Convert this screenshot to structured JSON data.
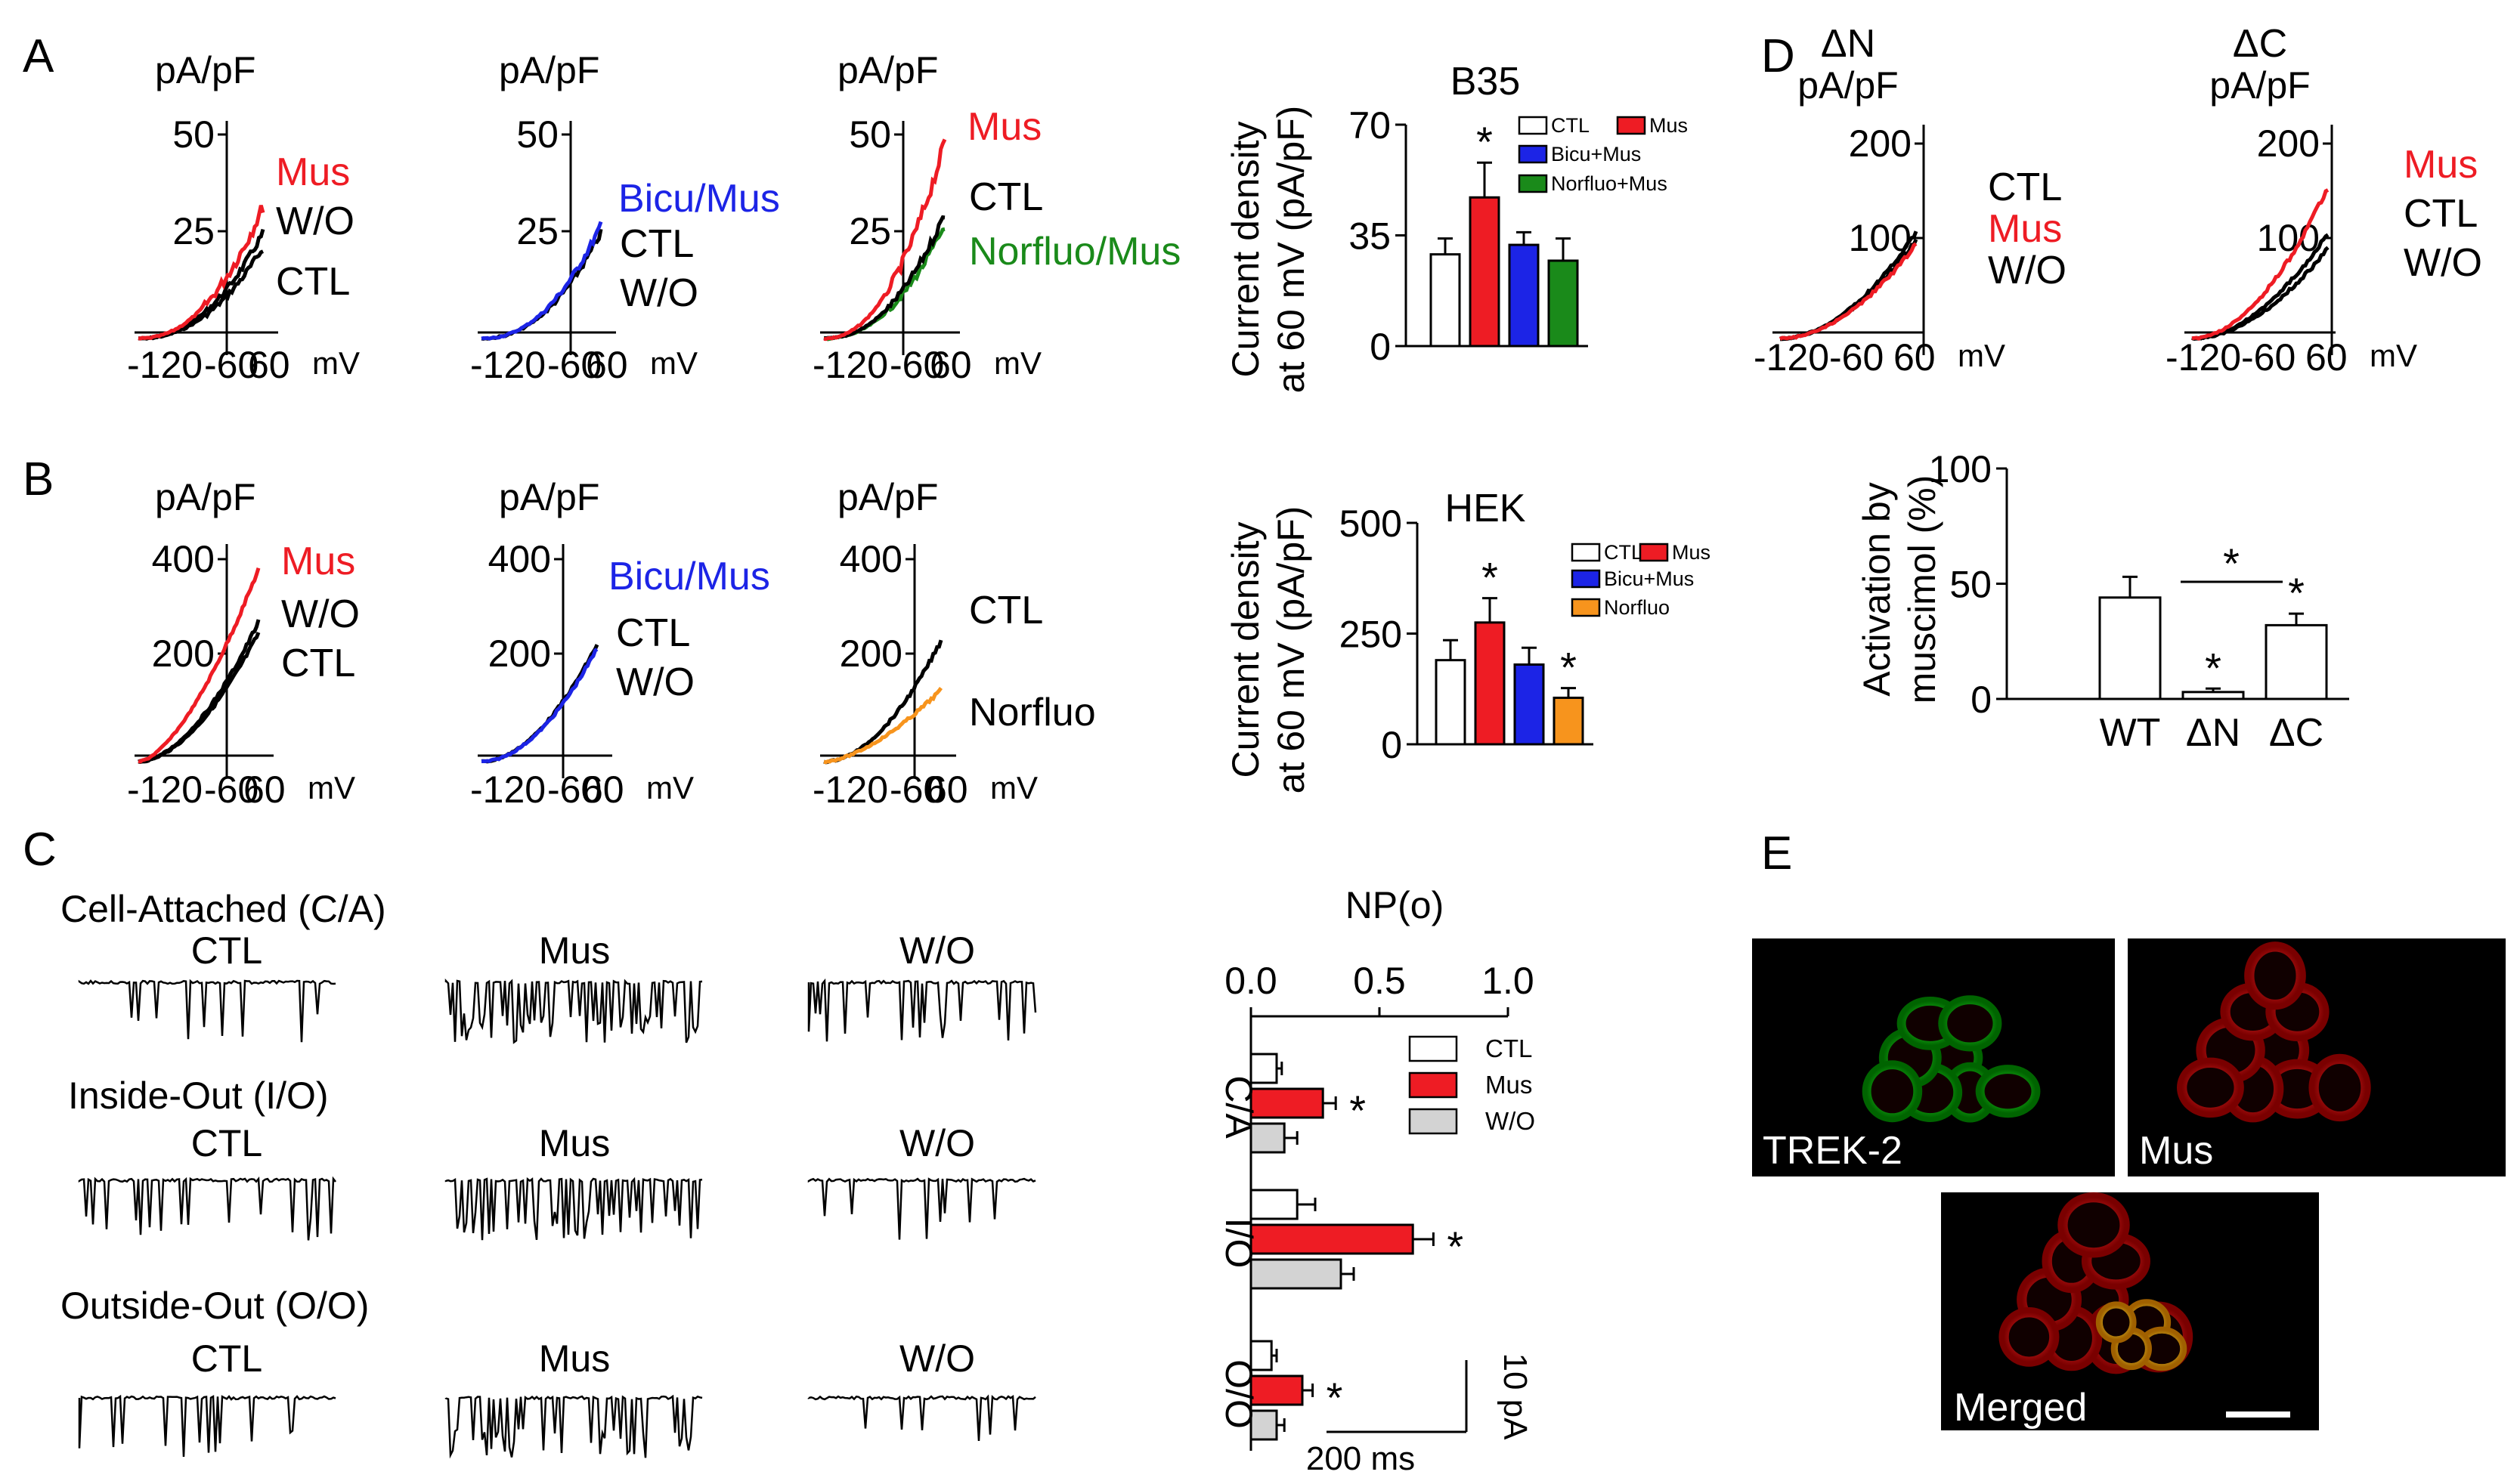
{
  "colors": {
    "ctl": "#000000",
    "mus": "#ee1c24",
    "bicu": "#1c24e6",
    "norfluo_b35": "#1a8a1a",
    "norfluo_hek": "#f7941d",
    "wo_bar": "#d3d3d3",
    "ctl_bar": "#ffffff"
  },
  "panels": {
    "A": "A",
    "B": "B",
    "C": "C",
    "D": "D",
    "E": "E"
  },
  "units": {
    "pApF": "pA/pF",
    "mV": "mV"
  },
  "x_ticks": {
    "m120": "-120",
    "m60": "-60",
    "p60": "60"
  },
  "panel_a": {
    "yticks": [
      "50",
      "25"
    ],
    "iv": [
      {
        "labels": [
          "Mus",
          "W/O",
          "CTL"
        ]
      },
      {
        "labels": [
          "Bicu/Mus",
          "CTL",
          "W/O"
        ]
      },
      {
        "labels": [
          "Mus",
          "CTL",
          "Norfluo/Mus"
        ]
      }
    ]
  },
  "panel_b": {
    "yticks": [
      "400",
      "200"
    ],
    "iv": [
      {
        "labels": [
          "Mus",
          "W/O",
          "CTL"
        ]
      },
      {
        "labels": [
          "Bicu/Mus",
          "CTL",
          "W/O"
        ]
      },
      {
        "labels": [
          "CTL",
          "Norfluo"
        ]
      }
    ]
  },
  "panel_c": {
    "rows": [
      "Cell-Attached (C/A)",
      "Inside-Out (I/O)",
      "Outside-Out (O/O)"
    ],
    "cols": [
      "CTL",
      "Mus",
      "W/O"
    ],
    "scale": {
      "y": "10 pA",
      "x": "200 ms"
    }
  },
  "panel_d": {
    "constructs": [
      {
        "name": "ΔN",
        "labels": [
          "CTL",
          "Mus",
          "W/O"
        ]
      },
      {
        "name": "ΔC",
        "labels": [
          "Mus",
          "CTL",
          "W/O"
        ]
      }
    ],
    "yticks": [
      "200",
      "100"
    ]
  },
  "panel_e": {
    "labels": [
      "TREK-2",
      "Mus",
      "Merged"
    ]
  },
  "chart_data": [
    {
      "type": "bar",
      "id": "A_bar",
      "title": "B35",
      "ylabel": [
        "Current density",
        "at 60 mV (pA/pF)"
      ],
      "ylim": [
        0,
        70
      ],
      "yticks": [
        0,
        35,
        70
      ],
      "categories": [
        "CTL",
        "Mus",
        "Bicu+Mus",
        "Norfluo+Mus"
      ],
      "values": [
        29,
        47,
        32,
        27
      ],
      "errors": [
        5,
        11,
        4,
        7
      ],
      "significant": [
        false,
        true,
        false,
        false
      ],
      "sig_mark": "*",
      "legend": [
        "CTL",
        "Mus",
        "Bicu+Mus",
        "Norfluo+Mus"
      ]
    },
    {
      "type": "bar",
      "id": "B_bar",
      "title": "HEK",
      "ylabel": [
        "Current density",
        "at 60 mV (pA/pF)"
      ],
      "ylim": [
        0,
        500
      ],
      "yticks": [
        0,
        250,
        500
      ],
      "categories": [
        "CTL",
        "Mus",
        "Bicu+Mus",
        "Norfluo"
      ],
      "values": [
        190,
        275,
        180,
        105
      ],
      "errors": [
        45,
        55,
        38,
        22
      ],
      "significant": [
        false,
        true,
        false,
        true
      ],
      "sig_mark": "*",
      "legend": [
        "CTL",
        "Mus",
        "Bicu+Mus",
        "Norfluo"
      ]
    },
    {
      "type": "bar",
      "id": "C_bar",
      "orientation": "horizontal",
      "title": "NP(o)",
      "xlim": [
        0,
        1
      ],
      "xticks": [
        "0.0",
        "0.5",
        "1.0"
      ],
      "groups": [
        "C/A",
        "I/O",
        "O/O"
      ],
      "series": [
        {
          "name": "CTL",
          "values": [
            0.1,
            0.18,
            0.08
          ],
          "errors": [
            0.02,
            0.07,
            0.02
          ]
        },
        {
          "name": "Mus",
          "values": [
            0.28,
            0.63,
            0.2
          ],
          "errors": [
            0.05,
            0.08,
            0.04
          ]
        },
        {
          "name": "W/O",
          "values": [
            0.13,
            0.35,
            0.1
          ],
          "errors": [
            0.05,
            0.05,
            0.03
          ]
        }
      ],
      "sig_mark": "*",
      "significant_series": "Mus",
      "legend": [
        "CTL",
        "Mus",
        "W/O"
      ]
    },
    {
      "type": "bar",
      "id": "D_bar",
      "ylabel": [
        "Activation by",
        "muscimol (%)"
      ],
      "ylim": [
        0,
        100
      ],
      "yticks": [
        0,
        50,
        100
      ],
      "categories": [
        "WT",
        "ΔN",
        "ΔC"
      ],
      "values": [
        44,
        3,
        32
      ],
      "errors": [
        9,
        1.5,
        5
      ],
      "significant": [
        false,
        true,
        true
      ],
      "sig_mark": "*",
      "comparison": {
        "between": [
          "ΔN",
          "ΔC"
        ],
        "mark": "*"
      }
    }
  ]
}
